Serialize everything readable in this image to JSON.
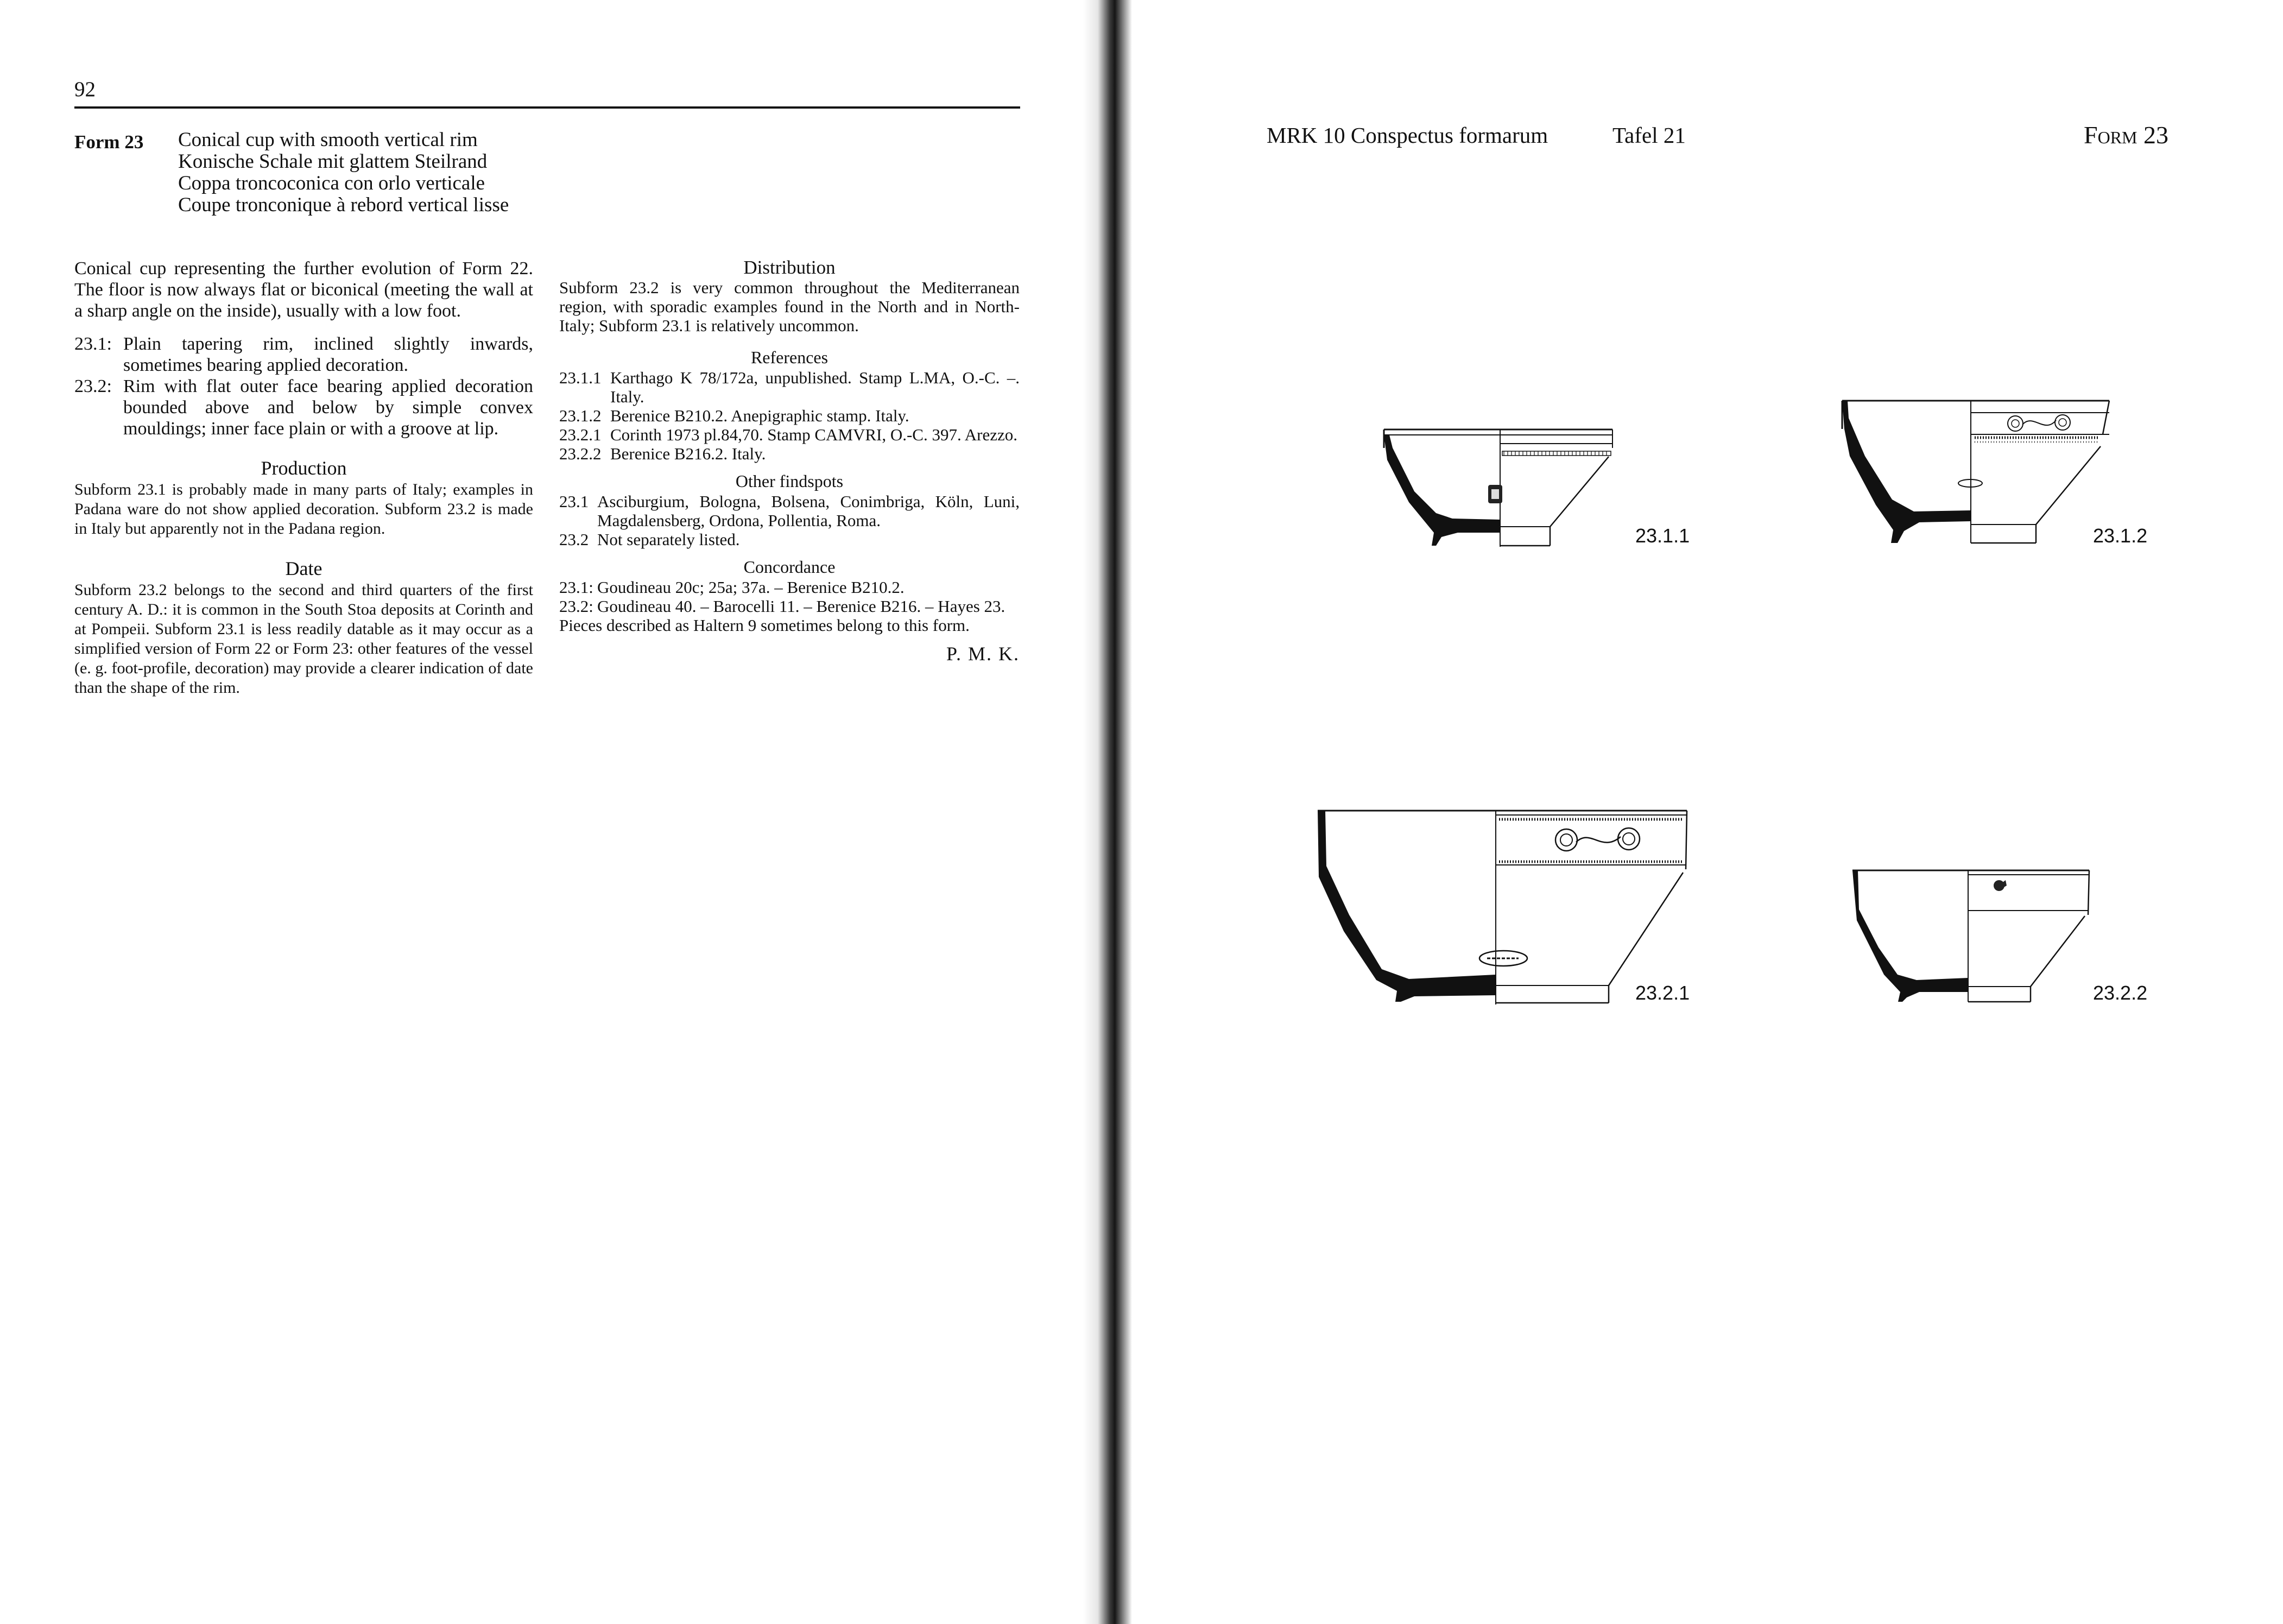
{
  "left_page": {
    "page_number": "92",
    "form_label": "Form 23",
    "form_titles": [
      "Conical cup with smooth vertical rim",
      "Konische Schale mit glattem Steilrand",
      "Coppa troncoconica con orlo verticale",
      "Coupe tronconique à rebord vertical lisse"
    ],
    "intro": "Conical cup representing the further evolution of Form 22. The floor is now always flat or biconical (meeting the wall at a sharp angle on the inside), usually with a low foot.",
    "subforms": [
      {
        "num": "23.1:",
        "text": "Plain tapering rim, inclined slightly inwards, sometimes bearing applied decoration."
      },
      {
        "num": "23.2:",
        "text": "Rim with flat outer face bearing applied decoration bounded above and below by simple convex mouldings; inner face plain or with a groove at lip."
      }
    ],
    "production": {
      "heading": "Production",
      "text": "Subform 23.1 is probably made in many parts of Italy; examples in Padana ware do not show applied decoration. Subform 23.2 is made in Italy but apparently not in the Padana region."
    },
    "date": {
      "heading": "Date",
      "text": "Subform 23.2 belongs to the second and third quarters of the first century A. D.: it is common in the South Stoa deposits at Corinth and at Pompeii. Subform 23.1 is less readily datable as it may occur as a simplified version of Form 22 or Form 23: other features of the vessel (e. g. foot-profile, decoration) may provide a clearer indication of date than the shape of the rim."
    },
    "distribution": {
      "heading": "Distribution",
      "text": "Subform 23.2 is very common throughout the Mediterranean region, with sporadic examples found in the North and in North-Italy; Subform 23.1 is relatively uncommon."
    },
    "references": {
      "heading": "References",
      "items": [
        {
          "num": "23.1.1",
          "text": "Karthago K 78/172a, unpublished. Stamp L.MA, O.-C. –. Italy."
        },
        {
          "num": "23.1.2",
          "text": "Berenice B210.2. Anepigraphic stamp. Italy."
        },
        {
          "num": "23.2.1",
          "text": "Corinth 1973 pl.84,70. Stamp CAMVRI, O.-C. 397. Arezzo."
        },
        {
          "num": "23.2.2",
          "text": "Berenice B216.2. Italy."
        }
      ]
    },
    "other_findspots": {
      "heading": "Other findspots",
      "items": [
        {
          "num": "23.1",
          "text": "Asciburgium, Bologna, Bolsena, Conimbriga, Köln, Luni, Magdalensberg, Ordona, Pollentia, Roma."
        },
        {
          "num": "23.2",
          "text": "Not separately listed."
        }
      ]
    },
    "concordance": {
      "heading": "Concordance",
      "items": [
        {
          "num": "23.1:",
          "text": "Goudineau 20c; 25a; 37a. – Berenice B210.2."
        },
        {
          "num": "23.2:",
          "text": "Goudineau 40. – Barocelli 11. – Berenice B216. – Hayes 23."
        }
      ],
      "note": "Pieces described as Haltern 9 sometimes belong to this form."
    },
    "signature": "P. M. K."
  },
  "right_page": {
    "series": "MRK 10 Conspectus formarum",
    "plate": "Tafel 21",
    "form": "Form 23",
    "figures": [
      {
        "label": "23.1.1"
      },
      {
        "label": "23.1.2"
      },
      {
        "label": "23.2.1"
      },
      {
        "label": "23.2.2"
      }
    ]
  }
}
